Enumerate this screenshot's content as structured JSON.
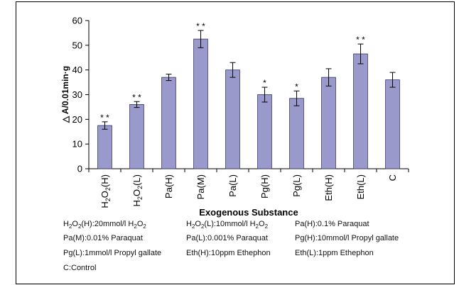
{
  "chart_data": {
    "type": "bar",
    "ylabel": "△ A/0.01min·g",
    "xlabel": "Exogenous Substance",
    "ylim": [
      0,
      60
    ],
    "yticks": [
      0,
      10,
      20,
      30,
      40,
      50,
      60
    ],
    "grid": false,
    "bar_color": "#9999cc",
    "categories": [
      {
        "base": "H",
        "sub": "2",
        "mid": "O",
        "sub2": "2",
        "tail": "(H)",
        "full": "H2O2(H)"
      },
      {
        "base": "H",
        "sub": "2",
        "mid": "O",
        "sub2": "2",
        "tail": "(L)",
        "full": "H2O2(L)"
      },
      {
        "full": "Pa(H)"
      },
      {
        "full": "Pa(M)"
      },
      {
        "full": "Pa(L)"
      },
      {
        "full": "Pg(H)"
      },
      {
        "full": "Pg(L)"
      },
      {
        "full": "Eth(H)"
      },
      {
        "full": "Eth(L)"
      },
      {
        "full": "C"
      }
    ],
    "values": [
      17.5,
      26,
      37,
      52.5,
      40,
      30,
      28.5,
      37,
      46.5,
      36
    ],
    "errors": [
      1.5,
      1.2,
      1.3,
      3.5,
      3.0,
      3.0,
      3.0,
      3.5,
      4.0,
      3.0
    ],
    "significance": [
      "* *",
      "* *",
      "",
      "* *",
      "",
      "*",
      "*",
      "",
      "* *",
      ""
    ]
  },
  "legend_lines": [
    [
      {
        "parts": [
          [
            "H",
            ""
          ],
          [
            "2",
            "sub"
          ],
          [
            "O",
            ""
          ],
          [
            "2",
            "sub"
          ],
          [
            "(H):20mmol/l H",
            ""
          ],
          [
            "2",
            "sub"
          ],
          [
            "O",
            ""
          ],
          [
            "2",
            "sub"
          ]
        ]
      },
      {
        "parts": [
          [
            "H",
            ""
          ],
          [
            "2",
            "sub"
          ],
          [
            "O",
            ""
          ],
          [
            "2",
            "sub"
          ],
          [
            "(L):10mmol/l H",
            ""
          ],
          [
            "2",
            "sub"
          ],
          [
            "O",
            ""
          ],
          [
            "2",
            "sub"
          ]
        ]
      },
      {
        "parts": [
          [
            "Pa(H):0.1% Paraquat",
            ""
          ]
        ]
      }
    ],
    [
      {
        "parts": [
          [
            "Pa(M):0.01% Paraquat",
            ""
          ]
        ]
      },
      {
        "parts": [
          [
            "Pa(L):0.001% Paraquat",
            ""
          ]
        ]
      },
      {
        "parts": [
          [
            "Pg(H):10mmol/l Propyl gallate",
            ""
          ]
        ]
      }
    ],
    [
      {
        "parts": [
          [
            "Pg(L):1mmol/l Propyl gallate",
            ""
          ]
        ]
      },
      {
        "parts": [
          [
            "Eth(H):10ppm Ethephon",
            ""
          ]
        ]
      },
      {
        "parts": [
          [
            "Eth(L):1ppm Ethephon",
            ""
          ]
        ]
      }
    ],
    [
      {
        "parts": [
          [
            "C:Control",
            ""
          ]
        ]
      }
    ]
  ]
}
